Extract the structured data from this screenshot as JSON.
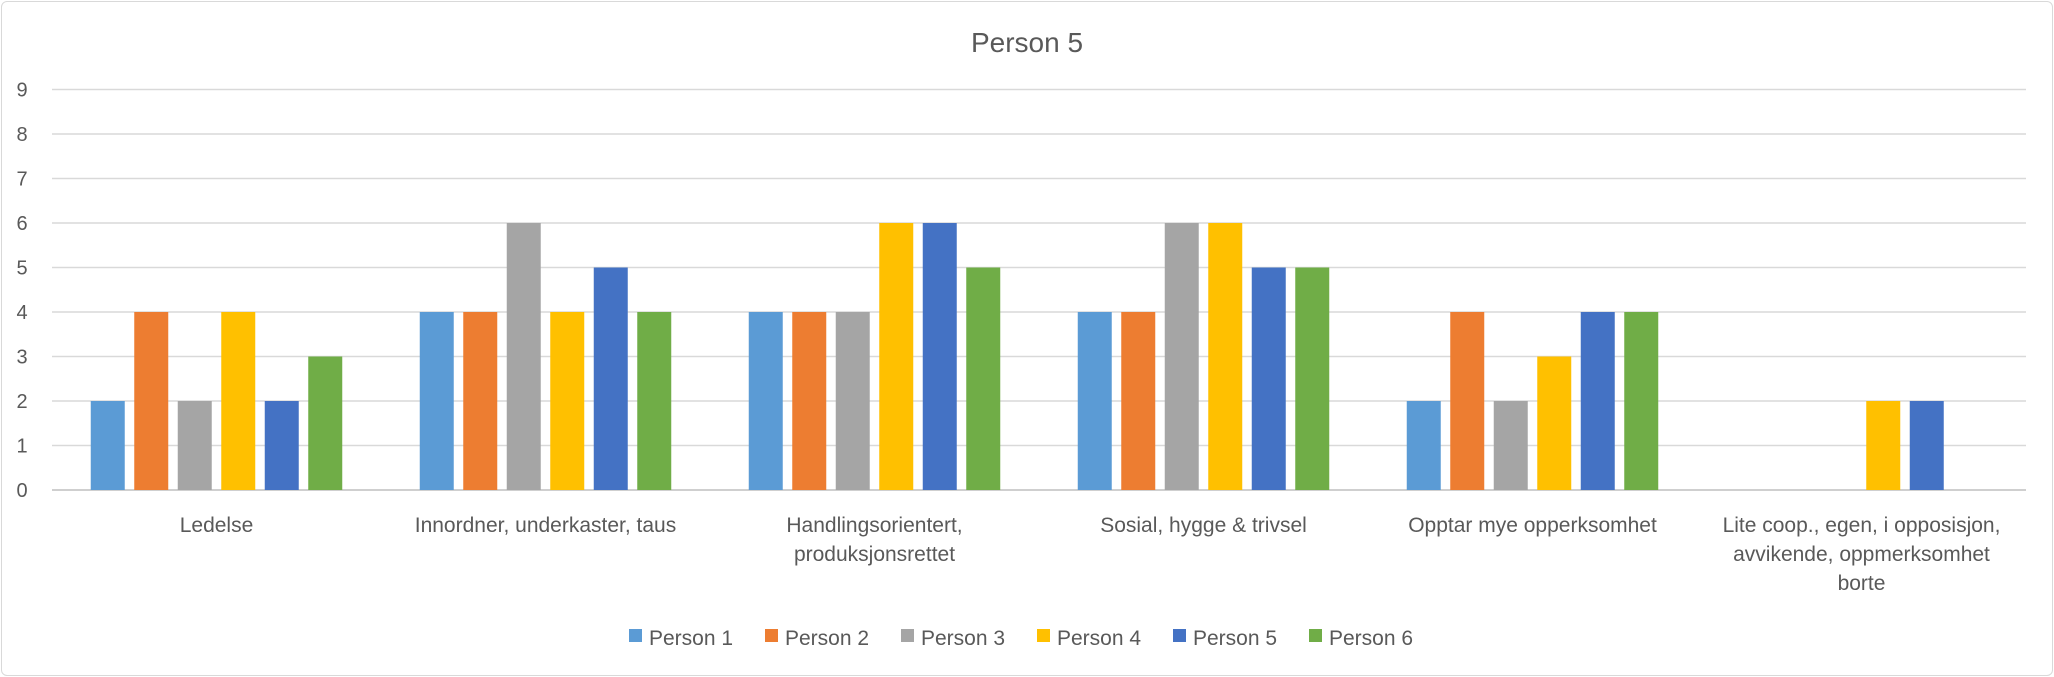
{
  "chart_data": {
    "type": "bar",
    "title": "Person 5",
    "xlabel": "",
    "ylabel": "",
    "ylim": [
      0,
      9
    ],
    "yticks": [
      0,
      1,
      2,
      3,
      4,
      5,
      6,
      7,
      8,
      9
    ],
    "grid": true,
    "legend_position": "bottom",
    "categories": [
      [
        "Ledelse"
      ],
      [
        "Innordner, underkaster, taus"
      ],
      [
        "Handlingsorientert,",
        "produksjonsrettet"
      ],
      [
        "Sosial, hygge & trivsel"
      ],
      [
        "Opptar mye opperksomhet"
      ],
      [
        "Lite coop., egen, i opposisjon,",
        "avvikende, oppmerksomhet",
        "borte"
      ]
    ],
    "series": [
      {
        "name": "Person 1",
        "color": "#5b9bd5",
        "values": [
          2,
          4,
          4,
          4,
          2,
          0
        ]
      },
      {
        "name": "Person 2",
        "color": "#ed7d31",
        "values": [
          4,
          4,
          4,
          4,
          4,
          0
        ]
      },
      {
        "name": "Person 3",
        "color": "#a5a5a5",
        "values": [
          2,
          6,
          4,
          6,
          2,
          0
        ]
      },
      {
        "name": "Person 4",
        "color": "#ffc000",
        "values": [
          4,
          4,
          6,
          6,
          3,
          2
        ]
      },
      {
        "name": "Person 5",
        "color": "#4472c4",
        "values": [
          2,
          5,
          6,
          5,
          4,
          2
        ]
      },
      {
        "name": "Person 6",
        "color": "#70ad47",
        "values": [
          3,
          4,
          5,
          5,
          4,
          0
        ]
      }
    ]
  }
}
